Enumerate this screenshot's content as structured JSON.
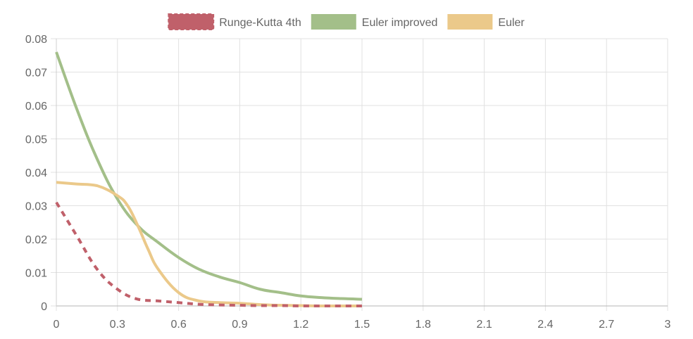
{
  "chart_data": {
    "type": "line",
    "title": "",
    "xlabel": "",
    "ylabel": "",
    "xlim": [
      0,
      3
    ],
    "ylim": [
      0,
      0.08
    ],
    "x_ticks": [
      "0",
      "0.3",
      "0.6",
      "0.9",
      "1.2",
      "1.5",
      "1.8",
      "2.1",
      "2.4",
      "2.7",
      "3"
    ],
    "y_ticks": [
      "0",
      "0.01",
      "0.02",
      "0.03",
      "0.04",
      "0.05",
      "0.06",
      "0.07",
      "0.08"
    ],
    "x_tick_values": [
      0,
      0.3,
      0.6,
      0.9,
      1.2,
      1.5,
      1.8,
      2.1,
      2.4,
      2.7,
      3
    ],
    "y_tick_values": [
      0,
      0.01,
      0.02,
      0.03,
      0.04,
      0.05,
      0.06,
      0.07,
      0.08
    ],
    "grid": true,
    "legend_position": "top",
    "series": [
      {
        "name": "Runge-Kutta 4th",
        "color": "#c0606a",
        "dashed": true,
        "x": [
          0,
          0.1,
          0.2,
          0.3,
          0.4,
          0.5,
          0.6,
          0.7,
          0.8,
          0.9,
          1.0,
          1.1,
          1.2,
          1.3,
          1.4,
          1.5
        ],
        "y": [
          0.031,
          0.021,
          0.011,
          0.005,
          0.002,
          0.0015,
          0.001,
          0.0005,
          0.0003,
          0.0002,
          0.0001,
          0.0001,
          0.0,
          0.0,
          0.0,
          0.0
        ]
      },
      {
        "name": "Euler improved",
        "color": "#a3bf89",
        "dashed": false,
        "x": [
          0,
          0.1,
          0.2,
          0.3,
          0.4,
          0.5,
          0.6,
          0.7,
          0.8,
          0.9,
          1.0,
          1.1,
          1.2,
          1.3,
          1.4,
          1.5
        ],
        "y": [
          0.076,
          0.059,
          0.044,
          0.032,
          0.024,
          0.019,
          0.0145,
          0.011,
          0.0087,
          0.007,
          0.005,
          0.004,
          0.003,
          0.0025,
          0.0022,
          0.002
        ]
      },
      {
        "name": "Euler",
        "color": "#ebc98a",
        "dashed": false,
        "x": [
          0,
          0.1,
          0.2,
          0.3,
          0.35,
          0.4,
          0.45,
          0.5,
          0.6,
          0.7,
          0.8,
          0.9,
          1.0,
          1.1,
          1.2,
          1.3,
          1.4,
          1.5
        ],
        "y": [
          0.037,
          0.0365,
          0.036,
          0.033,
          0.03,
          0.024,
          0.017,
          0.011,
          0.004,
          0.0015,
          0.001,
          0.0008,
          0.0004,
          0.0002,
          0.0001,
          0.0,
          0.0,
          0.0
        ]
      }
    ]
  }
}
